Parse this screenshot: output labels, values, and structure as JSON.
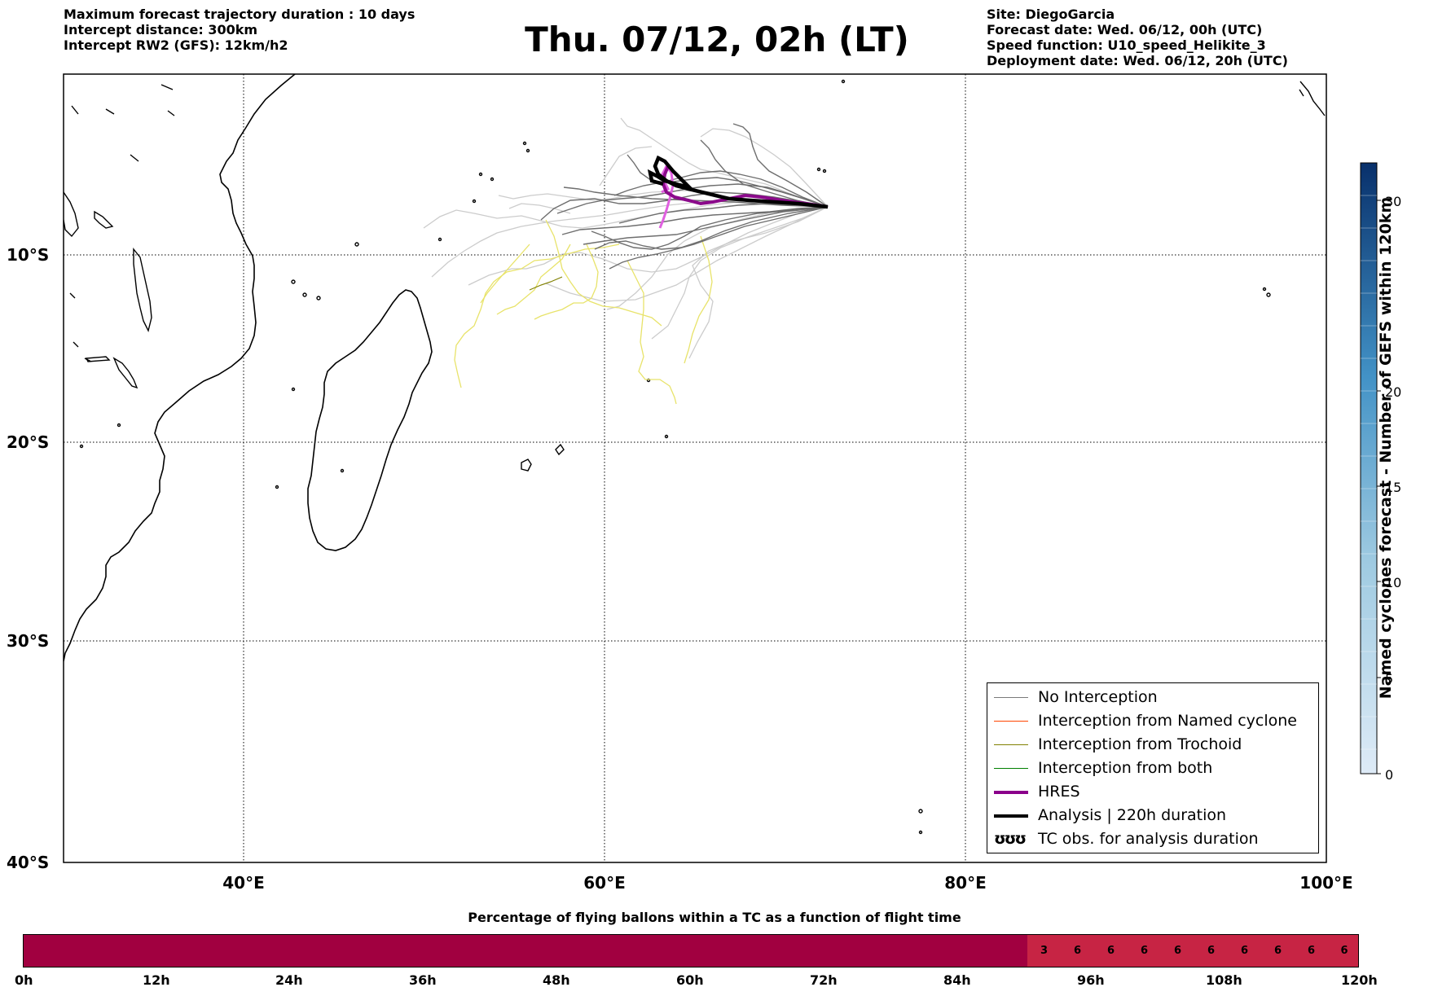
{
  "header": {
    "left": [
      "Maximum forecast trajectory duration : 10 days",
      "Intercept distance: 300km",
      "Intercept RW2 (GFS):  12km/h2"
    ],
    "title": "Thu. 07/12, 02h (LT)",
    "right": [
      "Site: DiegoGarcia",
      "Forecast date: Wed. 06/12, 00h (UTC)",
      "Speed function: U10_speed_Helikite_3",
      "Deployment date: Wed. 06/12, 20h (UTC)"
    ]
  },
  "map": {
    "lat_labels": [
      "10°S",
      "20°S",
      "30°S",
      "40°S"
    ],
    "lon_labels": [
      "40°E",
      "60°E",
      "80°E",
      "100°E"
    ],
    "colors": {
      "no_interception": "#6e6e6e",
      "no_interception_light": "#c8c8c8",
      "yellow": "#e8e36a",
      "hres": "#8b0a8b",
      "hres_light": "#e060e0",
      "analysis": "#000000"
    }
  },
  "legend": {
    "items": [
      {
        "label": "No Interception",
        "color": "#7a7a7a",
        "width": 1.5
      },
      {
        "label": "Interception from Named cyclone",
        "color": "#ff4500",
        "width": 1.5
      },
      {
        "label": "Interception from Trochoid",
        "color": "#808000",
        "width": 1.5
      },
      {
        "label": "Interception from both",
        "color": "#008000",
        "width": 1.5
      },
      {
        "label": "HRES",
        "color": "#8b008b",
        "width": 4
      },
      {
        "label": "Analysis | 220h duration",
        "color": "#000000",
        "width": 4
      },
      {
        "label": "TC obs. for analysis duration",
        "symbol": "ʊʊʊ"
      }
    ]
  },
  "colorbar": {
    "label": "Named cyclones forecast - Number of GEFS within 120km",
    "ticks": [
      "0",
      "5",
      "10",
      "15",
      "20",
      "30"
    ],
    "color_low": "#d9e7f6",
    "color_high": "#08306b"
  },
  "flight_bar": {
    "title": "Percentage of flying ballons within a TC as a function of flight time",
    "ticks": [
      "0h",
      "12h",
      "24h",
      "36h",
      "48h",
      "60h",
      "72h",
      "84h",
      "96h",
      "108h",
      "120h"
    ],
    "values": [
      3,
      6,
      6,
      6,
      6,
      6,
      6,
      6,
      6,
      6
    ],
    "color_base": "#a10040",
    "color_cells": "#c72444"
  }
}
